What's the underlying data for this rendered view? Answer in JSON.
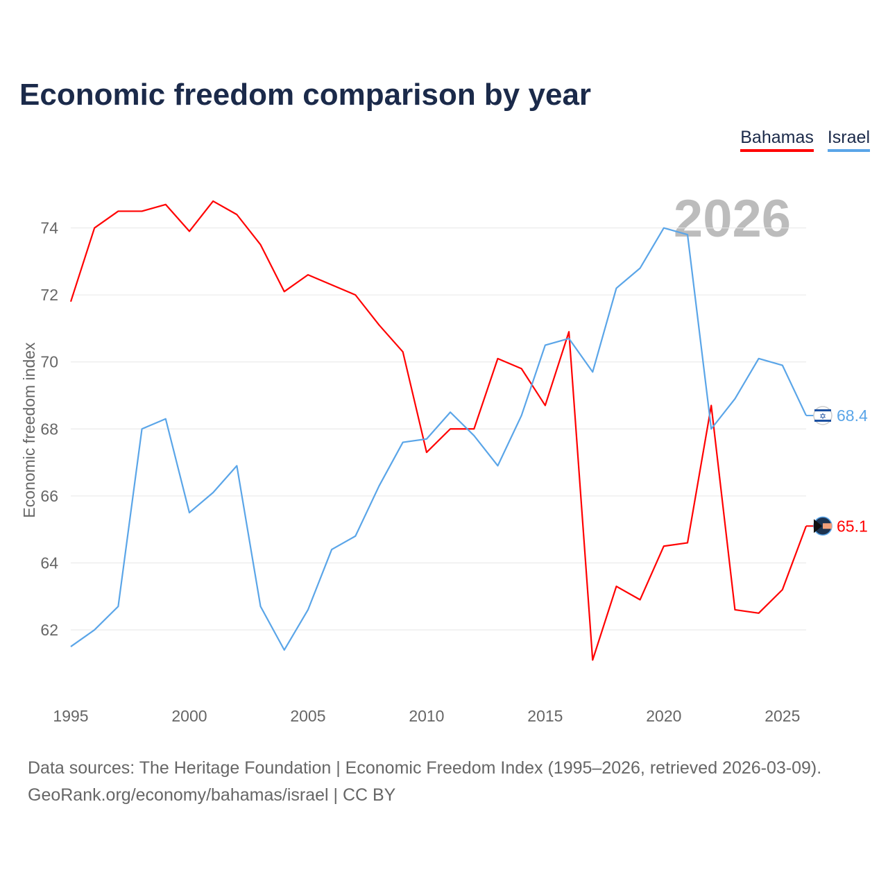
{
  "chart_data": {
    "type": "line",
    "title": "Economic freedom comparison by year",
    "xlabel": "",
    "ylabel": "Economic freedom index",
    "xlim": [
      1995,
      2026
    ],
    "ylim": [
      60,
      76
    ],
    "yticks": [
      62,
      64,
      66,
      68,
      70,
      72,
      74
    ],
    "xticks": [
      1995,
      2000,
      2005,
      2010,
      2015,
      2020,
      2025
    ],
    "grid": true,
    "legend_position": "top-right",
    "year_watermark": "2026",
    "x": [
      1995,
      1996,
      1997,
      1998,
      1999,
      2000,
      2001,
      2002,
      2003,
      2004,
      2005,
      2006,
      2007,
      2008,
      2009,
      2010,
      2011,
      2012,
      2013,
      2014,
      2015,
      2016,
      2017,
      2018,
      2019,
      2020,
      2021,
      2022,
      2023,
      2024,
      2025,
      2026
    ],
    "series": [
      {
        "name": "Bahamas",
        "color": "#ff0000",
        "end_label": "65.1",
        "values": [
          71.8,
          74.0,
          74.5,
          74.5,
          74.7,
          73.9,
          74.8,
          74.4,
          73.5,
          72.1,
          72.6,
          72.3,
          72.0,
          71.1,
          70.3,
          67.3,
          68.0,
          68.0,
          70.1,
          69.8,
          68.7,
          70.9,
          61.1,
          63.3,
          62.9,
          64.5,
          64.6,
          68.7,
          62.6,
          62.5,
          63.2,
          65.1
        ]
      },
      {
        "name": "Israel",
        "color": "#5aa5e8",
        "end_label": "68.4",
        "values": [
          61.5,
          62.0,
          62.7,
          68.0,
          68.3,
          65.5,
          66.1,
          66.9,
          62.7,
          61.4,
          62.6,
          64.4,
          64.8,
          66.3,
          67.6,
          67.7,
          68.5,
          67.8,
          66.9,
          68.4,
          70.5,
          70.7,
          69.7,
          72.2,
          72.8,
          74.0,
          73.8,
          68.0,
          68.9,
          70.1,
          69.9,
          68.4
        ]
      }
    ]
  },
  "source_line1": "Data sources: The Heritage Foundation | Economic Freedom Index (1995–2026, retrieved 2026-03-09).",
  "source_line2": "GeoRank.org/economy/bahamas/israel | CC BY"
}
